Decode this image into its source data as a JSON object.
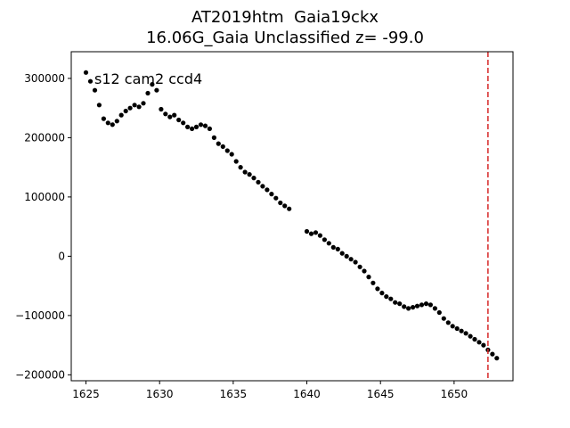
{
  "chart_data": {
    "type": "scatter",
    "title": "AT2019htm  Gaia19ckx",
    "subtitle": "16.06G_Gaia Unclassified z= -99.0",
    "annotation": "s12 cam2 ccd4",
    "xlabel": "",
    "ylabel": "",
    "xlim": [
      1624.0,
      1654.0
    ],
    "ylim": [
      -210000,
      345000
    ],
    "x_ticks": [
      1625,
      1630,
      1635,
      1640,
      1645,
      1650
    ],
    "y_ticks": [
      -200000,
      -100000,
      0,
      100000,
      200000,
      300000
    ],
    "marker_color": "#000000",
    "vline": {
      "x": 1652.3,
      "color": "#d62728",
      "style": "dashed"
    },
    "grid": false,
    "legend": "none",
    "series": [
      {
        "x": [
          1625.0,
          1625.3,
          1625.6,
          1625.9,
          1626.2,
          1626.5,
          1626.8,
          1627.1,
          1627.4,
          1627.7,
          1628.0,
          1628.3,
          1628.6,
          1628.9,
          1629.2,
          1629.5,
          1629.8,
          1630.1,
          1630.4,
          1630.7,
          1631.0,
          1631.3,
          1631.6,
          1631.9,
          1632.2,
          1632.5,
          1632.8,
          1633.1,
          1633.4,
          1633.7,
          1634.0,
          1634.3,
          1634.6,
          1634.9,
          1635.2,
          1635.5,
          1635.8,
          1636.1,
          1636.4,
          1636.7,
          1637.0,
          1637.3,
          1637.6,
          1637.9,
          1638.2,
          1638.5,
          1638.8,
          1640.0,
          1640.3,
          1640.6,
          1640.9,
          1641.2,
          1641.5,
          1641.8,
          1642.1,
          1642.4,
          1642.7,
          1643.0,
          1643.3,
          1643.6,
          1643.9,
          1644.2,
          1644.5,
          1644.8,
          1645.1,
          1645.4,
          1645.7,
          1646.0,
          1646.3,
          1646.6,
          1646.9,
          1647.2,
          1647.5,
          1647.8,
          1648.1,
          1648.4,
          1648.7,
          1649.0,
          1649.3,
          1649.6,
          1649.9,
          1650.2,
          1650.5,
          1650.8,
          1651.1,
          1651.4,
          1651.7,
          1652.0,
          1652.3,
          1652.6,
          1652.9
        ],
        "y": [
          310000,
          295000,
          280000,
          255000,
          232000,
          225000,
          222000,
          228000,
          238000,
          245000,
          250000,
          255000,
          252000,
          258000,
          275000,
          290000,
          280000,
          248000,
          240000,
          235000,
          238000,
          230000,
          225000,
          218000,
          215000,
          218000,
          222000,
          220000,
          215000,
          200000,
          190000,
          185000,
          178000,
          172000,
          160000,
          150000,
          142000,
          138000,
          132000,
          125000,
          118000,
          112000,
          105000,
          98000,
          90000,
          85000,
          80000,
          42000,
          38000,
          40000,
          35000,
          28000,
          22000,
          15000,
          12000,
          5000,
          0,
          -5000,
          -10000,
          -18000,
          -25000,
          -35000,
          -45000,
          -55000,
          -62000,
          -68000,
          -72000,
          -78000,
          -80000,
          -85000,
          -88000,
          -86000,
          -84000,
          -82000,
          -80000,
          -82000,
          -88000,
          -95000,
          -105000,
          -112000,
          -118000,
          -122000,
          -126000,
          -130000,
          -135000,
          -140000,
          -145000,
          -150000,
          -158000,
          -165000,
          -172000
        ]
      }
    ]
  }
}
